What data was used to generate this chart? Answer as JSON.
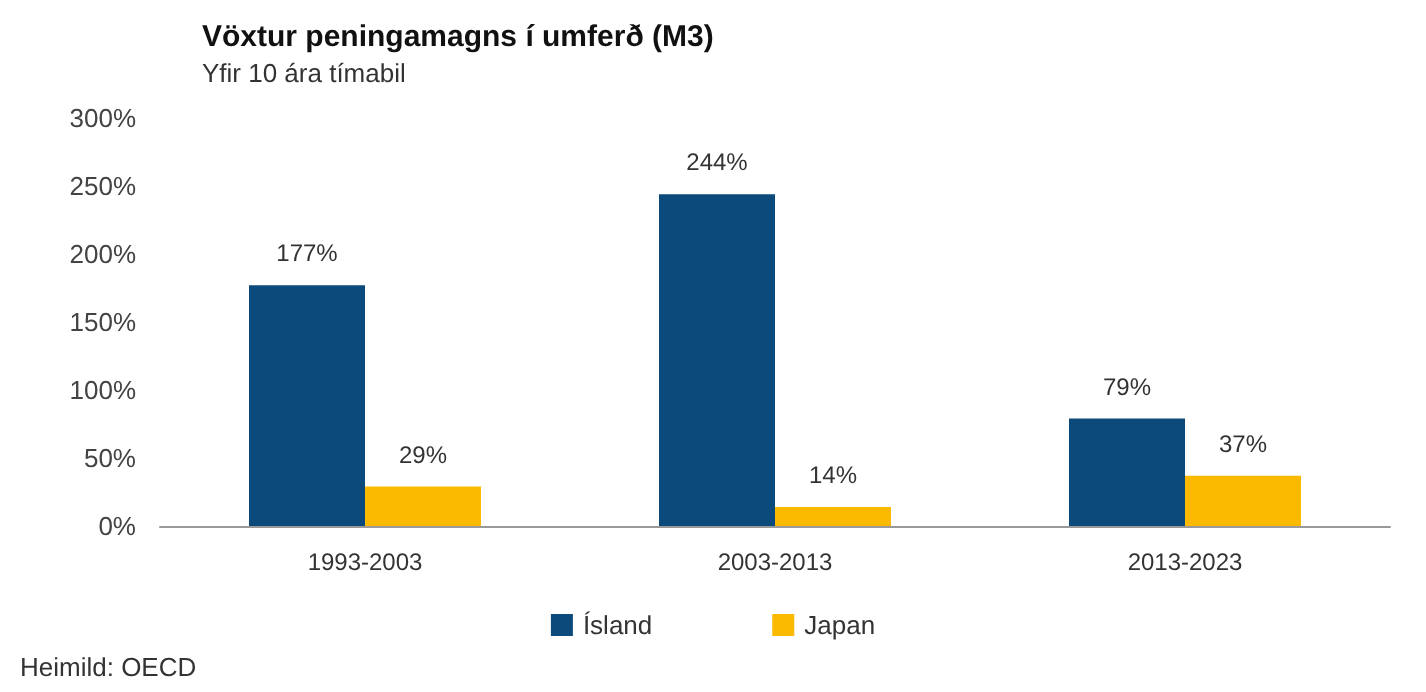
{
  "chart_data": {
    "type": "bar",
    "title": "Vöxtur peningamagns í umferð (M3)",
    "subtitle": "Yfir 10 ára tímabil",
    "annotations": [
      "Heimild: OECD"
    ],
    "categories": [
      "1993-2003",
      "2003-2013",
      "2013-2023"
    ],
    "series": [
      {
        "name": "Ísland",
        "color": "#0b4a7a",
        "values": [
          177,
          244,
          79
        ],
        "value_labels": [
          "177%",
          "244%",
          "79%"
        ]
      },
      {
        "name": "Japan",
        "color": "#fbb900",
        "values": [
          29,
          14,
          37
        ],
        "value_labels": [
          "29%",
          "14%",
          "37%"
        ]
      }
    ],
    "ylim": [
      0,
      300
    ],
    "yticks": [
      {
        "value": 0,
        "label": "0%"
      },
      {
        "value": 50,
        "label": "50%"
      },
      {
        "value": 100,
        "label": "100%"
      },
      {
        "value": 150,
        "label": "150%"
      },
      {
        "value": 200,
        "label": "200%"
      },
      {
        "value": 250,
        "label": "250%"
      },
      {
        "value": 300,
        "label": "300%"
      }
    ],
    "grid": false,
    "legend": "bottom"
  }
}
